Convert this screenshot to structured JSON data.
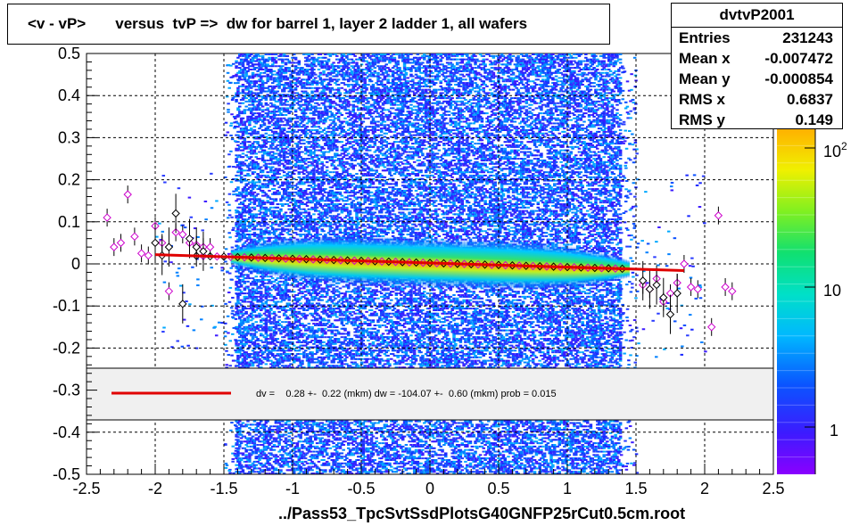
{
  "title": "<v - vP>       versus  tvP =>  dw for barrel 1, layer 2 ladder 1, all wafers",
  "footer": "../Pass53_TpcSvtSsdPlotsG40GNFP25rCut0.5cm.root",
  "stats": {
    "name": "dvtvP2001",
    "rows": [
      {
        "key": "Entries",
        "value": "231243"
      },
      {
        "key": "Mean x",
        "value": "-0.007472"
      },
      {
        "key": "Mean y",
        "value": "-0.000854"
      },
      {
        "key": "RMS x",
        "value": "0.6837"
      },
      {
        "key": "RMS y",
        "value": "0.149"
      }
    ]
  },
  "fit_legend": "dv =    0.28 +-  0.22 (mkm) dw = -104.07 +-  0.60 (mkm) prob = 0.015",
  "colors": {
    "fit_line": "#e00000",
    "profile_open": "#cc00cc",
    "profile_black": "#000000"
  },
  "chart_data": {
    "type": "heatmap",
    "xlim": [
      -2.5,
      2.5
    ],
    "ylim": [
      -0.5,
      0.5
    ],
    "x_ticks": [
      "-2.5",
      "-2",
      "-1.5",
      "-1",
      "-0.5",
      "0",
      "0.5",
      "1",
      "1.5",
      "2",
      "2.5"
    ],
    "y_ticks": [
      "-0.5",
      "-0.4",
      "-0.3",
      "-0.2",
      "-0.1",
      "0",
      "0.1",
      "0.2",
      "0.3",
      "0.4",
      "0.5"
    ],
    "grid": true,
    "z_scale": "log",
    "z_ticks": [
      "1",
      "10",
      "10^2"
    ],
    "fit_line": {
      "x": [
        -2.0,
        1.85
      ],
      "y": [
        0.022,
        -0.016
      ]
    },
    "profile_magenta": {
      "x": [
        -2.35,
        -2.3,
        -2.25,
        -2.2,
        -2.15,
        -2.1,
        -2.05,
        -2.0,
        -1.95,
        -1.9,
        -1.85,
        -1.8,
        -1.75,
        -1.7,
        -1.65,
        -1.6,
        1.55,
        1.6,
        1.65,
        1.7,
        1.75,
        1.8,
        1.85,
        1.9,
        1.95,
        2.05,
        2.1,
        2.15,
        2.2
      ],
      "y": [
        0.11,
        0.04,
        0.05,
        0.165,
        0.065,
        0.025,
        0.02,
        0.09,
        0.05,
        -0.065,
        0.075,
        0.07,
        0.05,
        0.045,
        0.04,
        0.04,
        -0.05,
        -0.06,
        -0.035,
        -0.09,
        -0.07,
        -0.045,
        0.0,
        -0.055,
        -0.06,
        -0.15,
        0.115,
        -0.055,
        -0.065
      ]
    },
    "profile_black": {
      "x": [
        -2.0,
        -1.95,
        -1.9,
        -1.85,
        -1.8,
        -1.75,
        -1.7,
        -1.65,
        1.55,
        1.6,
        1.65,
        1.7,
        1.75,
        1.8
      ],
      "y": [
        0.05,
        0.02,
        0.04,
        0.12,
        -0.095,
        0.06,
        0.04,
        0.03,
        -0.04,
        -0.06,
        -0.05,
        -0.08,
        -0.12,
        -0.07
      ]
    }
  }
}
